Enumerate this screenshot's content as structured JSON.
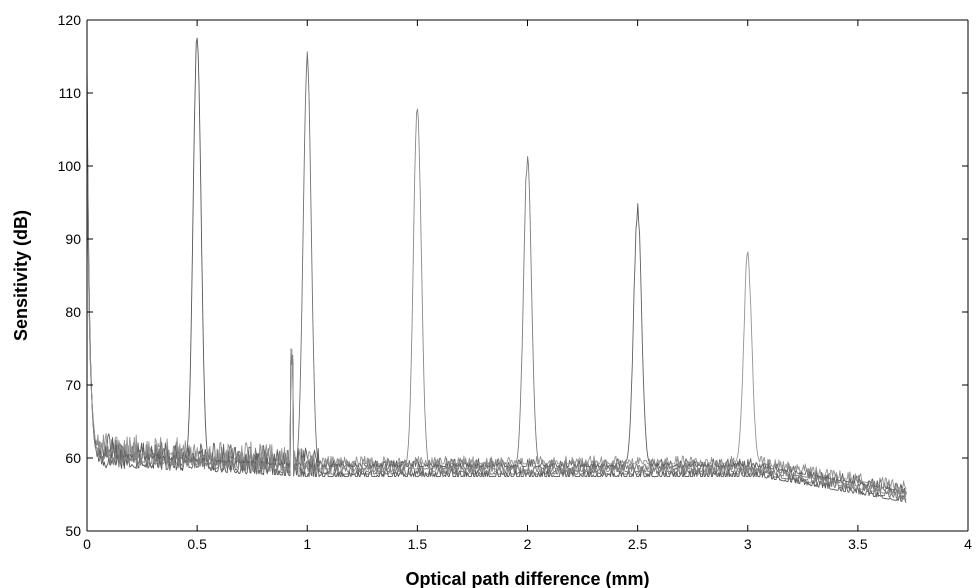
{
  "chart_data": {
    "type": "line",
    "title": "",
    "xlabel": "Optical path difference (mm)",
    "ylabel": "Sensitivity (dB)",
    "xlim": [
      0,
      4
    ],
    "ylim": [
      50,
      120
    ],
    "xticks": [
      0,
      0.5,
      1,
      1.5,
      2,
      2.5,
      3,
      3.5,
      4
    ],
    "xtick_labels": [
      "0",
      "0.5",
      "1",
      "1.5",
      "2",
      "2.5",
      "3",
      "3.5",
      "4"
    ],
    "yticks": [
      50,
      60,
      70,
      80,
      90,
      100,
      110,
      120
    ],
    "ytick_labels": [
      "50",
      "60",
      "70",
      "80",
      "90",
      "100",
      "110",
      "120"
    ],
    "grid": false,
    "legend": "none",
    "line_color": "#6b6b6b",
    "noise_floor": {
      "x_end": 3.72,
      "level_start": 58.5,
      "level_end": 55
    },
    "peaks": [
      {
        "x": 0.5,
        "y": 118
      },
      {
        "x": 1.0,
        "y": 115
      },
      {
        "x": 1.5,
        "y": 108
      },
      {
        "x": 2.0,
        "y": 101
      },
      {
        "x": 2.5,
        "y": 94
      },
      {
        "x": 3.0,
        "y": 88
      }
    ],
    "dc_peak": {
      "x": 0.0,
      "y": 114
    }
  }
}
